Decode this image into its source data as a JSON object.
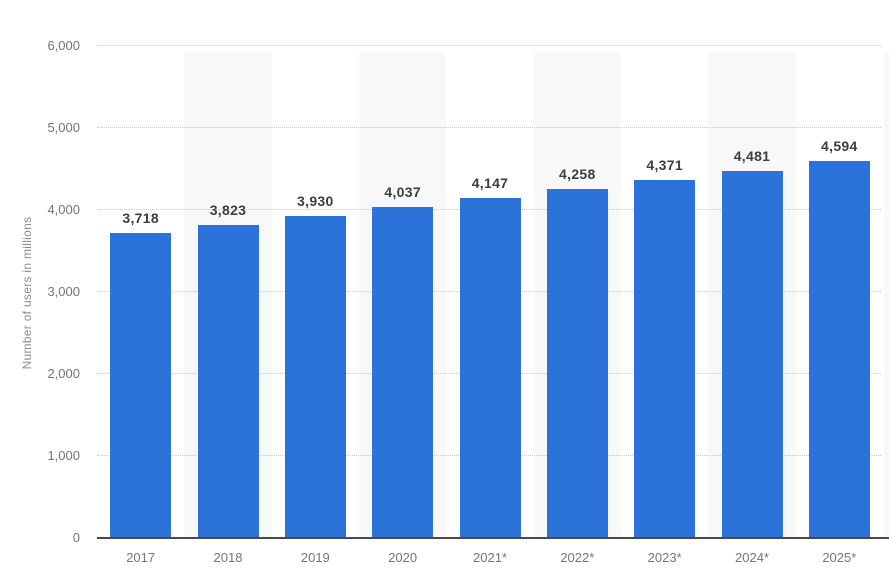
{
  "chart_data": {
    "type": "bar",
    "title": "",
    "categories": [
      "2017",
      "2018",
      "2019",
      "2020",
      "2021*",
      "2022*",
      "2023*",
      "2024*",
      "2025*"
    ],
    "values": [
      3718,
      3823,
      3930,
      4037,
      4147,
      4258,
      4371,
      4481,
      4594
    ],
    "value_labels": [
      "3,718",
      "3,823",
      "3,930",
      "4,037",
      "4,147",
      "4,258",
      "4,371",
      "4,481",
      "4,594"
    ],
    "xlabel": "",
    "ylabel": "Number of users in millions",
    "ylim": [
      0,
      6000
    ],
    "ytick_interval": 1000,
    "ytick_labels": [
      "0",
      "1,000",
      "2,000",
      "3,000",
      "4,000",
      "5,000",
      "6,000"
    ],
    "grid": "horizontal dotted lines at every 1,000",
    "legend": "none",
    "plot_background": "alternating light-gray vertical bands behind every second category (2018, 2020, 2022*, 2024*)",
    "colors": {
      "bar": "#2b73d8",
      "column_band": "#f8f8f8",
      "gridline": "#c9c9c9",
      "axis_line": "#4a4a4a",
      "tick_text": "#757575",
      "value_label_text": "#3d3d3d",
      "axis_title_text": "#8c8c8c",
      "background": "#ffffff"
    }
  }
}
